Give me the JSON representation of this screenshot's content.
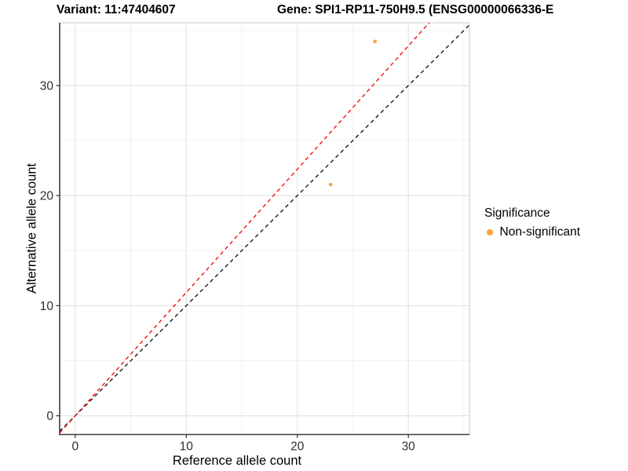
{
  "chart_data": {
    "type": "scatter",
    "titles": {
      "left": "Variant: 11:47404607",
      "right": "Gene: SPI1-RP11-750H9.5 (ENSG00000066336-E"
    },
    "xlabel": "Reference allele count",
    "ylabel": "Alternative allele count",
    "xlim": [
      -1.4,
      35.5
    ],
    "ylim": [
      -1.7,
      35.7
    ],
    "xticks": [
      0,
      10,
      20,
      30
    ],
    "yticks": [
      0,
      10,
      20,
      30
    ],
    "xminor": [
      5,
      15,
      25,
      35
    ],
    "yminor": [
      5,
      15,
      25,
      35
    ],
    "grid": true,
    "points": [
      {
        "x": 23,
        "y": 21,
        "series": "Non-significant"
      },
      {
        "x": 27,
        "y": 34,
        "series": "Non-significant"
      }
    ],
    "point_color": "#F9A242",
    "lines": [
      {
        "name": "identity-line",
        "slope": 1.0,
        "intercept": 0,
        "color": "#1a1a1a",
        "style": "dashed"
      },
      {
        "name": "fit-line",
        "slope": 1.12,
        "intercept": 0,
        "color": "#f50f0f",
        "style": "dashed"
      }
    ],
    "legend": {
      "title": "Significance",
      "position": "right",
      "items": [
        {
          "label": "Non-significant",
          "color": "#F9A242"
        }
      ]
    },
    "colors": {
      "grid_major": "#e3e3e3",
      "grid_minor": "#f1f1f1",
      "axis_line_dark": "#3d3d3d",
      "axis_line_light": "#c9c9c9",
      "tick": "#333333",
      "tick_label": "#2e2e2e"
    }
  }
}
